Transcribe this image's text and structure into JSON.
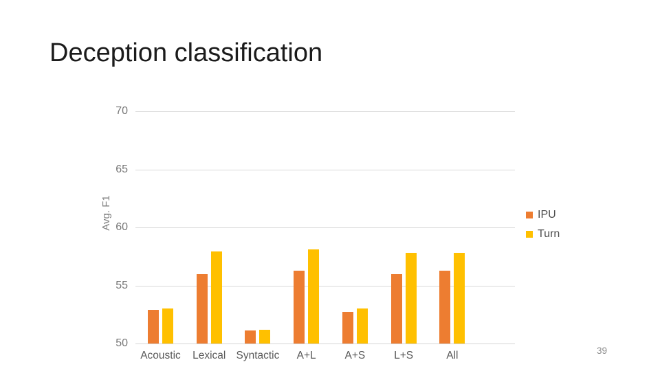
{
  "slide": {
    "title": "Deception classification",
    "page_number": "39"
  },
  "chart_data": {
    "type": "bar",
    "title": "",
    "categories": [
      "Acoustic",
      "Lexical",
      "Syntactic",
      "A+L",
      "A+S",
      "L+S",
      "All"
    ],
    "series": [
      {
        "name": "IPU",
        "color": "#ED7D31",
        "values": [
          52.9,
          56.0,
          51.1,
          56.3,
          52.7,
          56.0,
          56.3
        ]
      },
      {
        "name": "Turn",
        "color": "#FFC000",
        "values": [
          53.0,
          57.9,
          51.2,
          58.1,
          53.0,
          57.8,
          57.8
        ]
      }
    ],
    "xlabel": "",
    "ylabel": "Avg. F1",
    "ylim": [
      50,
      70
    ],
    "yticks": [
      50,
      55,
      60,
      65,
      70
    ],
    "grid": "horizontal",
    "grid_color": "#D9D9D9",
    "legend_position": "right",
    "axis_text_color": "#767676",
    "category_text_color": "#595959"
  }
}
